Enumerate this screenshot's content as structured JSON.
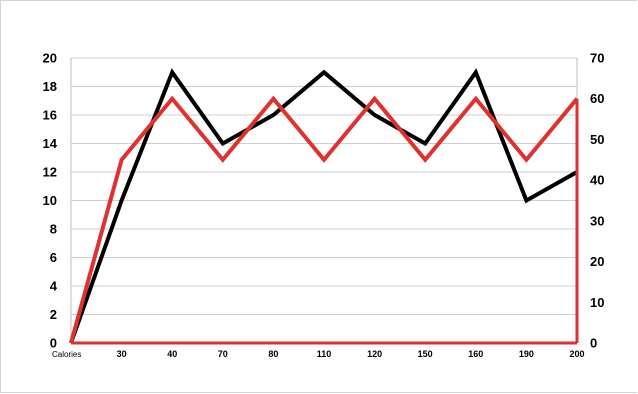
{
  "chart_data": {
    "type": "line",
    "categories": [
      "Calories",
      "30",
      "40",
      "70",
      "80",
      "110",
      "120",
      "150",
      "160",
      "190",
      "200"
    ],
    "y_left": {
      "ylim": [
        0,
        20
      ],
      "ticks": [
        "0",
        "2",
        "4",
        "6",
        "8",
        "10",
        "12",
        "14",
        "16",
        "18",
        "20"
      ]
    },
    "y_right": {
      "ylim": [
        0,
        70
      ],
      "ticks": [
        "0",
        "10",
        "20",
        "30",
        "40",
        "50",
        "60",
        "70"
      ]
    },
    "grid": true,
    "series": [
      {
        "axis": "left",
        "color": "#000000",
        "values": [
          0,
          10,
          19,
          14,
          16,
          19,
          16,
          14,
          19,
          10,
          12
        ]
      },
      {
        "axis": "right",
        "color": "#e03131",
        "values": [
          0,
          45,
          60,
          45,
          60,
          45,
          60,
          45,
          60,
          45,
          60
        ]
      }
    ]
  }
}
